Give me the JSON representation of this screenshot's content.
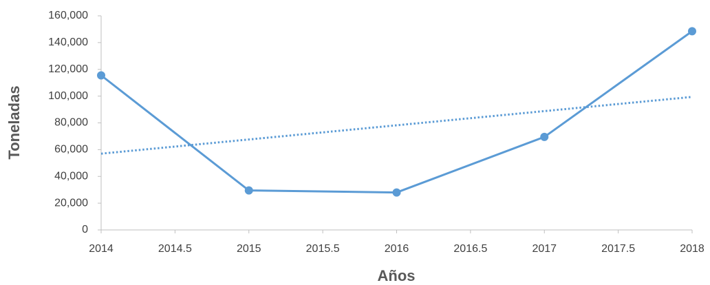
{
  "chart_data": {
    "type": "line",
    "x_label": "Años",
    "y_label": "Toneladas",
    "x": [
      2014,
      2015,
      2016,
      2017,
      2018
    ],
    "series": [
      {
        "color": "#5b9bd5",
        "values": [
          115500,
          29500,
          28000,
          69500,
          148500
        ]
      }
    ],
    "trendline": {
      "color": "#5b9bd5",
      "style": "dotted",
      "x": [
        2014,
        2018
      ],
      "values": [
        57000,
        99400
      ]
    },
    "xlim": [
      2014,
      2018
    ],
    "xticks": [
      2014,
      2014.5,
      2015,
      2015.5,
      2016,
      2016.5,
      2017,
      2017.5,
      2018
    ],
    "ylim": [
      0,
      160000
    ],
    "yticks": [
      0,
      {
        "value": 20000,
        "label": "20,000"
      },
      {
        "value": 40000,
        "label": "40,000"
      },
      {
        "value": 60000,
        "label": "60,000"
      },
      {
        "value": 80000,
        "label": "80,000"
      },
      {
        "value": 100000,
        "label": "100,000"
      },
      {
        "value": 120000,
        "label": "120,000"
      },
      {
        "value": 140000,
        "label": "140,000"
      },
      {
        "value": 160000,
        "label": "160,000"
      }
    ],
    "grid": false
  }
}
